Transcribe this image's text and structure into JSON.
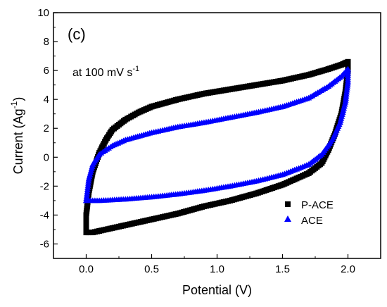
{
  "chart_data": {
    "type": "scatter",
    "panel_label": "(c)",
    "annotation": {
      "prefix": "at 100 mV s",
      "superscript": "-1"
    },
    "xlabel": "Potential (V)",
    "ylabel": {
      "main": "Current (Ag",
      "superscript": "-1",
      "close": ")"
    },
    "xlim": [
      -0.25,
      2.25
    ],
    "ylim": [
      -7,
      10
    ],
    "xticks": [
      0.0,
      0.5,
      1.0,
      1.5,
      2.0
    ],
    "xtick_labels": [
      "0.0",
      "0.5",
      "1.0",
      "1.5",
      "2.0"
    ],
    "yticks": [
      -6,
      -4,
      -2,
      0,
      2,
      4,
      6,
      8,
      10
    ],
    "ytick_labels": [
      "-6",
      "-4",
      "-2",
      "0",
      "2",
      "4",
      "6",
      "8",
      "10"
    ],
    "legend_position": "lower-right",
    "grid": false,
    "series": [
      {
        "name": "P-ACE",
        "marker": "square",
        "color": "#000000",
        "points": [
          [
            0.0,
            -5.2
          ],
          [
            0.0,
            -4.0
          ],
          [
            0.02,
            -2.4
          ],
          [
            0.05,
            -1.0
          ],
          [
            0.1,
            0.3
          ],
          [
            0.15,
            1.2
          ],
          [
            0.2,
            1.9
          ],
          [
            0.3,
            2.6
          ],
          [
            0.4,
            3.1
          ],
          [
            0.5,
            3.5
          ],
          [
            0.7,
            4.0
          ],
          [
            0.9,
            4.4
          ],
          [
            1.1,
            4.7
          ],
          [
            1.3,
            5.0
          ],
          [
            1.5,
            5.3
          ],
          [
            1.7,
            5.7
          ],
          [
            1.85,
            6.1
          ],
          [
            1.95,
            6.4
          ],
          [
            2.0,
            6.6
          ],
          [
            2.0,
            6.0
          ],
          [
            1.98,
            4.5
          ],
          [
            1.95,
            3.0
          ],
          [
            1.9,
            1.6
          ],
          [
            1.85,
            0.5
          ],
          [
            1.8,
            -0.4
          ],
          [
            1.7,
            -1.1
          ],
          [
            1.5,
            -1.9
          ],
          [
            1.3,
            -2.5
          ],
          [
            1.1,
            -3.0
          ],
          [
            0.9,
            -3.4
          ],
          [
            0.7,
            -3.9
          ],
          [
            0.5,
            -4.3
          ],
          [
            0.3,
            -4.7
          ],
          [
            0.15,
            -5.0
          ],
          [
            0.05,
            -5.2
          ],
          [
            0.0,
            -5.2
          ]
        ]
      },
      {
        "name": "ACE",
        "marker": "triangle",
        "color": "#0000ff",
        "points": [
          [
            0.0,
            -3.0
          ],
          [
            0.02,
            -1.5
          ],
          [
            0.05,
            -0.5
          ],
          [
            0.1,
            0.2
          ],
          [
            0.2,
            0.8
          ],
          [
            0.3,
            1.2
          ],
          [
            0.5,
            1.7
          ],
          [
            0.7,
            2.1
          ],
          [
            0.9,
            2.4
          ],
          [
            1.1,
            2.75
          ],
          [
            1.3,
            3.1
          ],
          [
            1.5,
            3.5
          ],
          [
            1.7,
            4.1
          ],
          [
            1.85,
            4.9
          ],
          [
            1.95,
            5.6
          ],
          [
            2.0,
            6.1
          ],
          [
            2.0,
            5.2
          ],
          [
            1.98,
            3.8
          ],
          [
            1.94,
            2.4
          ],
          [
            1.88,
            1.2
          ],
          [
            1.8,
            0.2
          ],
          [
            1.7,
            -0.5
          ],
          [
            1.5,
            -1.2
          ],
          [
            1.3,
            -1.65
          ],
          [
            1.1,
            -2.0
          ],
          [
            0.9,
            -2.3
          ],
          [
            0.7,
            -2.55
          ],
          [
            0.5,
            -2.75
          ],
          [
            0.3,
            -2.9
          ],
          [
            0.1,
            -3.0
          ],
          [
            0.0,
            -3.0
          ]
        ]
      }
    ]
  }
}
